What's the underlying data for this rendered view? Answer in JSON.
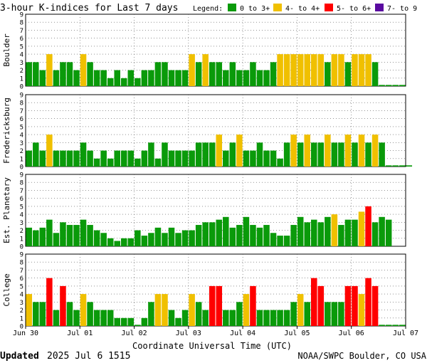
{
  "title": "3-hour K-indices for Last 7 days",
  "legend": {
    "label": "Legend:",
    "items": [
      {
        "label": "0 to 3+",
        "color": "#0a9a0a"
      },
      {
        "label": "4- to 4+",
        "color": "#f0c000"
      },
      {
        "label": "5- to 6+",
        "color": "#ff0000"
      },
      {
        "label": "7- to 9",
        "color": "#5a0aa0"
      }
    ]
  },
  "footer": {
    "updated_label": "Updated",
    "updated_value": "2025 Jul  6 1515",
    "credit": "NOAA/SWPC Boulder, CO USA"
  },
  "chart_data": {
    "type": "bar",
    "xlabel": "Coordinate Universal Time (UTC)",
    "x_ticks": [
      "Jun 30",
      "Jul 01",
      "Jul 02",
      "Jul 03",
      "Jul 04",
      "Jul 05",
      "Jul 06",
      "Jul 07"
    ],
    "yticks": [
      0,
      1,
      2,
      3,
      4,
      5,
      6,
      7,
      8,
      9
    ],
    "ylim": [
      0,
      9
    ],
    "interval_hours": 3,
    "grid": true,
    "panels": [
      {
        "name": "Boulder",
        "values": [
          3,
          3,
          2,
          4,
          2,
          3,
          3,
          2,
          4,
          3,
          2,
          2,
          1,
          2,
          1,
          2,
          1,
          2,
          2,
          3,
          3,
          2,
          2,
          2,
          4,
          3,
          4,
          3,
          3,
          2,
          3,
          2,
          2,
          3,
          2,
          2,
          3,
          4,
          4,
          4,
          4,
          4,
          4,
          4,
          3,
          4,
          4,
          3,
          4,
          4,
          4,
          3,
          0.15,
          0.15,
          0.15,
          0.15
        ]
      },
      {
        "name": "Fredericksburg",
        "values": [
          2,
          3,
          2,
          4,
          2,
          2,
          2,
          2,
          3,
          2,
          1,
          2,
          1,
          2,
          2,
          2,
          1,
          2,
          3,
          1,
          3,
          2,
          2,
          2,
          2,
          3,
          3,
          3,
          4,
          2,
          3,
          4,
          2,
          2,
          3,
          2,
          2,
          1,
          3,
          4,
          3,
          4,
          3,
          3,
          4,
          3,
          3,
          4,
          3,
          4,
          3,
          4,
          3,
          0.15,
          0.15,
          0.15,
          0.15
        ]
      },
      {
        "name": "Est. Planetary",
        "values": [
          2.33,
          2,
          2.33,
          3.33,
          1.67,
          3,
          2.67,
          2.67,
          3.33,
          2.67,
          2,
          1.67,
          1,
          0.67,
          1,
          1,
          2,
          1.33,
          1.67,
          2.33,
          1.67,
          2.33,
          1.67,
          2,
          2,
          2.67,
          3,
          3,
          3.33,
          3.67,
          2.33,
          2.67,
          3.67,
          2.67,
          2.33,
          2.67,
          1.67,
          1.33,
          1.33,
          2.67,
          3.67,
          3,
          3.33,
          3,
          3.67,
          4,
          2.67,
          3.33,
          3.33,
          4.33,
          5,
          3,
          3.67,
          3.33
        ]
      },
      {
        "name": "College",
        "values": [
          4,
          3,
          3,
          6,
          2,
          5,
          3,
          2,
          4,
          3,
          2,
          2,
          2,
          1,
          1,
          1,
          0.15,
          1,
          3,
          4,
          4,
          2,
          1,
          2,
          4,
          3,
          2,
          5,
          5,
          2,
          2,
          3,
          4,
          5,
          2,
          2,
          2,
          2,
          2,
          3,
          4,
          3,
          6,
          5,
          3,
          3,
          3,
          5,
          5,
          4,
          6,
          5,
          0.15,
          0.15,
          0.15,
          0.15
        ]
      }
    ]
  }
}
